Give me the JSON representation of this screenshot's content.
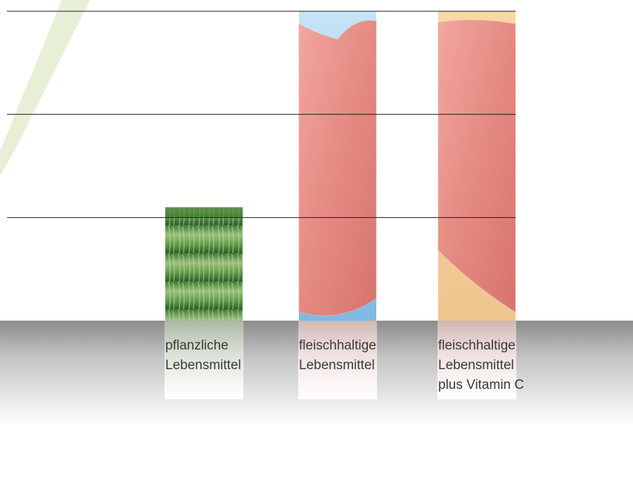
{
  "chart_data": {
    "type": "bar",
    "title": "",
    "xlabel": "",
    "ylabel": "",
    "categories": [
      "pflanzliche\nLebensmittel",
      "fleischhaltige\nLebensmittel",
      "fleischhaltige\nLebensmittel\nplus Vitamin C"
    ],
    "values": [
      1.1,
      3.0,
      3.0
    ],
    "ylim": [
      0,
      3
    ],
    "grid": true,
    "legend": "none",
    "bar_fills": [
      "wheat-photo",
      "meat-photo",
      "meat-photo"
    ],
    "colors": {
      "wheat_dark": "#2f6b2a",
      "wheat_light": "#a9c98a",
      "meat": "#e48a82",
      "meat_light": "#f0a8a0",
      "sky": "#8cc3e8",
      "sky_top": "#bfe0f4",
      "peach_top": "#f6d7a8",
      "accent_stripe": "#dfe9c8",
      "floor": "#8c8c8c"
    }
  }
}
